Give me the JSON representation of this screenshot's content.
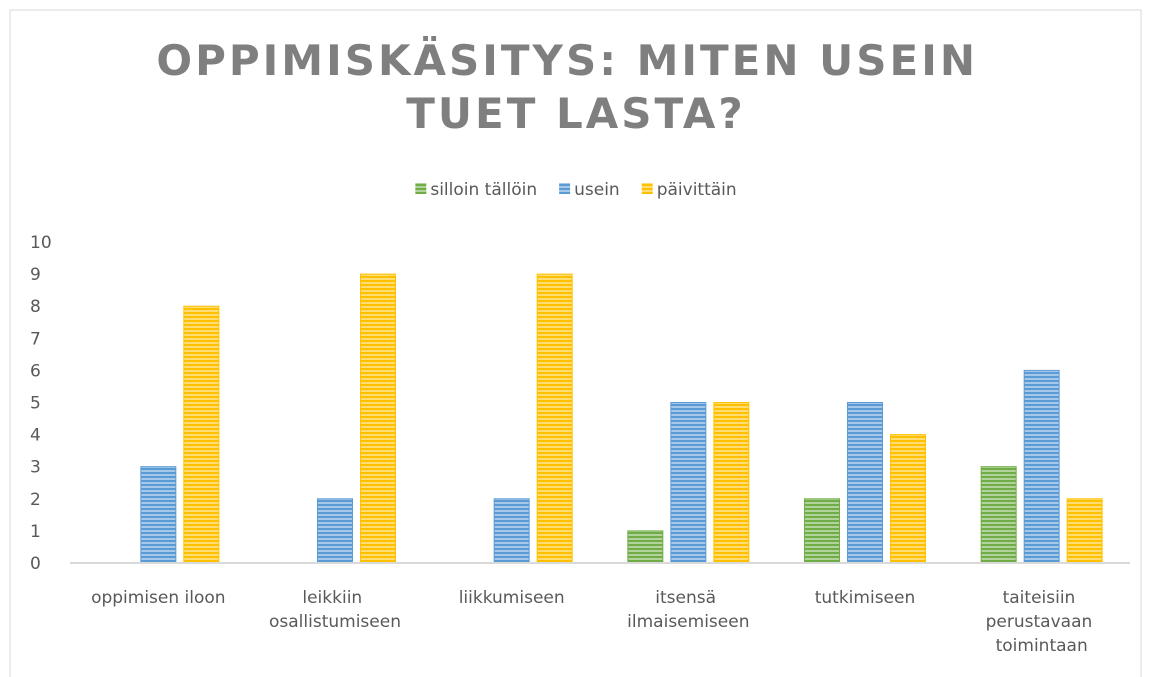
{
  "chart_data": {
    "type": "bar",
    "title": "OPPIMISKÄSITYS: MITEN USEIN TUET LASTA?",
    "categories": [
      "oppimisen iloon",
      "leikkiin osallistumiseen",
      "liikkumiseen",
      "itsensä ilmaisemiseen",
      "tutkimiseen",
      "taiteisiin perustavaan toimintaan"
    ],
    "series": [
      {
        "name": "silloin tällöin",
        "color": "#70ad47",
        "values": [
          0,
          0,
          0,
          1,
          2,
          3
        ]
      },
      {
        "name": "usein",
        "color": "#5b9bd5",
        "values": [
          3,
          2,
          2,
          5,
          5,
          6
        ]
      },
      {
        "name": "päivittäin",
        "color": "#ffc000",
        "values": [
          8,
          9,
          9,
          5,
          4,
          2
        ]
      }
    ],
    "ylim": [
      0,
      10
    ],
    "yticks": [
      0,
      1,
      2,
      3,
      4,
      5,
      6,
      7,
      8,
      9,
      10
    ],
    "grid": false,
    "legend": "top"
  }
}
